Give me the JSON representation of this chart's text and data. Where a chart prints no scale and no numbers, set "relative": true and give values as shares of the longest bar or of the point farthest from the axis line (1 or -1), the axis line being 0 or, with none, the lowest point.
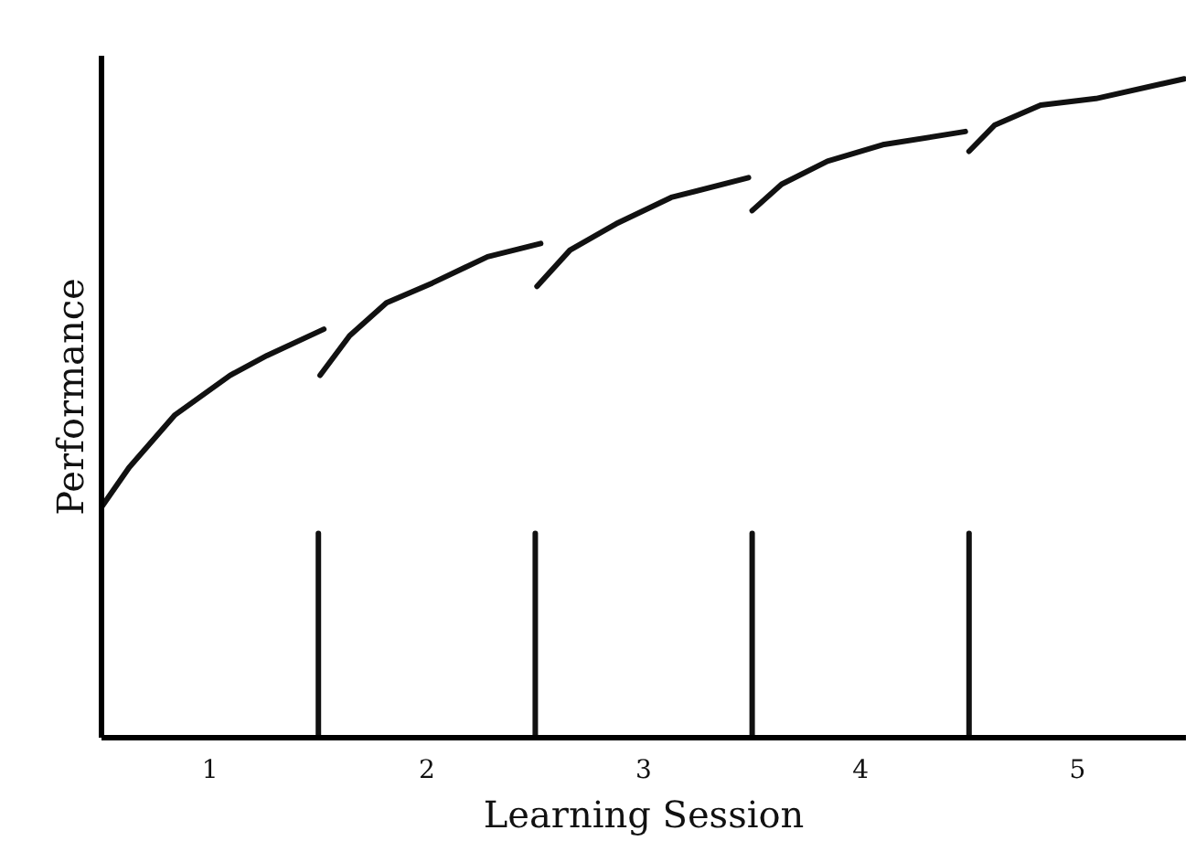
{
  "chart_data": {
    "type": "line",
    "relative": true,
    "xlabel": "Learning Session",
    "ylabel": "Performance",
    "xlim": [
      0.5,
      5.5
    ],
    "xticks": [
      1,
      2,
      3,
      4,
      5
    ],
    "tick_labels": "x",
    "grid": false,
    "marker": "none",
    "line_style": "solid",
    "series": [
      {
        "color": "#111111",
        "x": [
          0.5,
          0.627,
          0.839,
          1.093,
          1.263,
          1.525
        ],
        "values": [
          0.35,
          0.41,
          0.49,
          0.55,
          0.58,
          0.62
        ]
      },
      {
        "color": "#111111",
        "x": [
          1.508,
          1.644,
          1.814,
          2.025,
          2.28,
          2.525
        ],
        "values": [
          0.55,
          0.61,
          0.66,
          0.69,
          0.73,
          0.75
        ]
      },
      {
        "color": "#111111",
        "x": [
          2.508,
          2.66,
          2.873,
          3.127,
          3.483
        ],
        "values": [
          0.685,
          0.74,
          0.78,
          0.82,
          0.85
        ]
      },
      {
        "color": "#111111",
        "x": [
          3.5,
          3.636,
          3.847,
          4.102,
          4.483
        ],
        "values": [
          0.8,
          0.84,
          0.875,
          0.9,
          0.92
        ]
      },
      {
        "color": "#111111",
        "x": [
          4.5,
          4.619,
          4.83,
          5.085,
          5.492
        ],
        "values": [
          0.89,
          0.93,
          0.96,
          0.97,
          1.0
        ]
      },
      {
        "color": "#111111",
        "x": [
          1.5,
          1.5
        ],
        "values": [
          0,
          0.31
        ]
      },
      {
        "color": "#111111",
        "x": [
          2.5,
          2.5
        ],
        "values": [
          0,
          0.31
        ]
      },
      {
        "color": "#111111",
        "x": [
          3.5,
          3.5
        ],
        "values": [
          0,
          0.31
        ]
      },
      {
        "color": "#111111",
        "x": [
          4.5,
          4.5
        ],
        "values": [
          0,
          0.31
        ]
      }
    ]
  }
}
